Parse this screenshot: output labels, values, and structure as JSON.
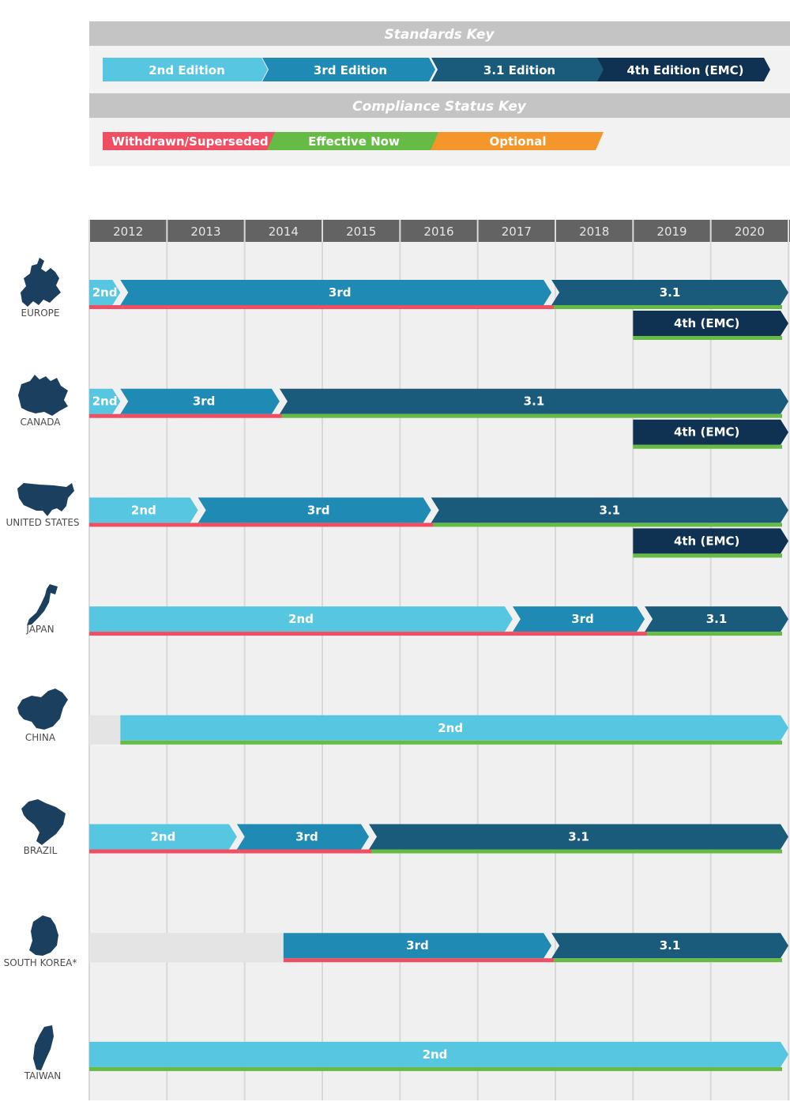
{
  "colors": {
    "2nd": "#57c6e0",
    "3rd": "#1f8ab3",
    "3.1": "#1a5b7c",
    "4th": "#0f3152",
    "withdrawn": "#f04e62",
    "effective": "#66bb45",
    "optional": "#f4962a",
    "gray": "#e4e4e4"
  },
  "keys": {
    "standards_title": "Standards Key",
    "standards": [
      {
        "label": "2nd Edition",
        "color": "2nd"
      },
      {
        "label": "3rd Edition",
        "color": "3rd"
      },
      {
        "label": "3.1 Edition",
        "color": "3.1"
      },
      {
        "label": "4th Edition (EMC)",
        "color": "4th"
      }
    ],
    "status_title": "Compliance Status Key",
    "status": [
      {
        "label": "Withdrawn/Superseded",
        "color": "withdrawn"
      },
      {
        "label": "Effective Now",
        "color": "effective"
      },
      {
        "label": "Optional",
        "color": "optional"
      }
    ]
  },
  "chart_data": {
    "type": "timeline",
    "years": [
      "2012",
      "2013",
      "2014",
      "2015",
      "2016",
      "2017",
      "2018",
      "2019",
      "2020"
    ],
    "x_range": [
      2011.5,
      2020.5
    ],
    "countries": [
      {
        "name": "EUROPE",
        "icon": "europe-map-icon",
        "tracks": [
          [
            {
              "label": "2nd",
              "edition": "2nd",
              "status": "withdrawn",
              "start": 2011.5,
              "end": 2011.9
            },
            {
              "label": "3rd",
              "edition": "3rd",
              "status": "withdrawn",
              "start": 2011.9,
              "end": 2017.45
            },
            {
              "label": "3.1",
              "edition": "3.1",
              "status": "effective",
              "start": 2017.45,
              "end": 2020.5
            }
          ],
          [
            {
              "label": "4th (EMC)",
              "edition": "4th",
              "status": "effective",
              "start": 2018.5,
              "end": 2020.5
            }
          ]
        ]
      },
      {
        "name": "CANADA",
        "icon": "canada-map-icon",
        "tracks": [
          [
            {
              "label": "2nd",
              "edition": "2nd",
              "status": "withdrawn",
              "start": 2011.5,
              "end": 2011.9
            },
            {
              "label": "3rd",
              "edition": "3rd",
              "status": "withdrawn",
              "start": 2011.9,
              "end": 2013.95
            },
            {
              "label": "3.1",
              "edition": "3.1",
              "status": "effective",
              "start": 2013.95,
              "end": 2020.5
            }
          ],
          [
            {
              "label": "4th (EMC)",
              "edition": "4th",
              "status": "effective",
              "start": 2018.5,
              "end": 2020.5
            }
          ]
        ]
      },
      {
        "name": "UNITED STATES",
        "icon": "usa-map-icon",
        "tracks": [
          [
            {
              "label": "2nd",
              "edition": "2nd",
              "status": "withdrawn",
              "start": 2011.5,
              "end": 2012.9
            },
            {
              "label": "3rd",
              "edition": "3rd",
              "status": "withdrawn",
              "start": 2012.9,
              "end": 2015.9
            },
            {
              "label": "3.1",
              "edition": "3.1",
              "status": "effective",
              "start": 2015.9,
              "end": 2020.5
            }
          ],
          [
            {
              "label": "4th (EMC)",
              "edition": "4th",
              "status": "effective",
              "start": 2018.5,
              "end": 2020.5
            }
          ]
        ]
      },
      {
        "name": "JAPAN",
        "icon": "japan-map-icon",
        "tracks": [
          [
            {
              "label": "2nd",
              "edition": "2nd",
              "status": "withdrawn",
              "start": 2011.5,
              "end": 2016.95
            },
            {
              "label": "3rd",
              "edition": "3rd",
              "status": "withdrawn",
              "start": 2016.95,
              "end": 2018.65
            },
            {
              "label": "3.1",
              "edition": "3.1",
              "status": "effective",
              "start": 2018.65,
              "end": 2020.5
            }
          ]
        ]
      },
      {
        "name": "CHINA",
        "icon": "china-map-icon",
        "tracks": [
          [
            {
              "label": "",
              "edition": "gray",
              "status": "gray",
              "start": 2011.5,
              "end": 2011.9
            },
            {
              "label": "2nd",
              "edition": "2nd",
              "status": "effective",
              "start": 2011.9,
              "end": 2020.5
            }
          ]
        ]
      },
      {
        "name": "BRAZIL",
        "icon": "brazil-map-icon",
        "tracks": [
          [
            {
              "label": "2nd",
              "edition": "2nd",
              "status": "withdrawn",
              "start": 2011.5,
              "end": 2013.4
            },
            {
              "label": "3rd",
              "edition": "3rd",
              "status": "withdrawn",
              "start": 2013.4,
              "end": 2015.1
            },
            {
              "label": "3.1",
              "edition": "3.1",
              "status": "effective",
              "start": 2015.1,
              "end": 2020.5
            }
          ]
        ]
      },
      {
        "name": "SOUTH KOREA*",
        "icon": "south-korea-map-icon",
        "tracks": [
          [
            {
              "label": "",
              "edition": "gray",
              "status": "gray",
              "start": 2011.5,
              "end": 2014.0
            },
            {
              "label": "3rd",
              "edition": "3rd",
              "status": "withdrawn",
              "start": 2014.0,
              "end": 2017.45
            },
            {
              "label": "3.1",
              "edition": "3.1",
              "status": "effective",
              "start": 2017.45,
              "end": 2020.5
            }
          ]
        ]
      },
      {
        "name": "TAIWAN",
        "icon": "taiwan-map-icon",
        "tracks": [
          [
            {
              "label": "2nd",
              "edition": "2nd",
              "status": "effective",
              "start": 2011.5,
              "end": 2020.5
            }
          ]
        ]
      }
    ]
  }
}
